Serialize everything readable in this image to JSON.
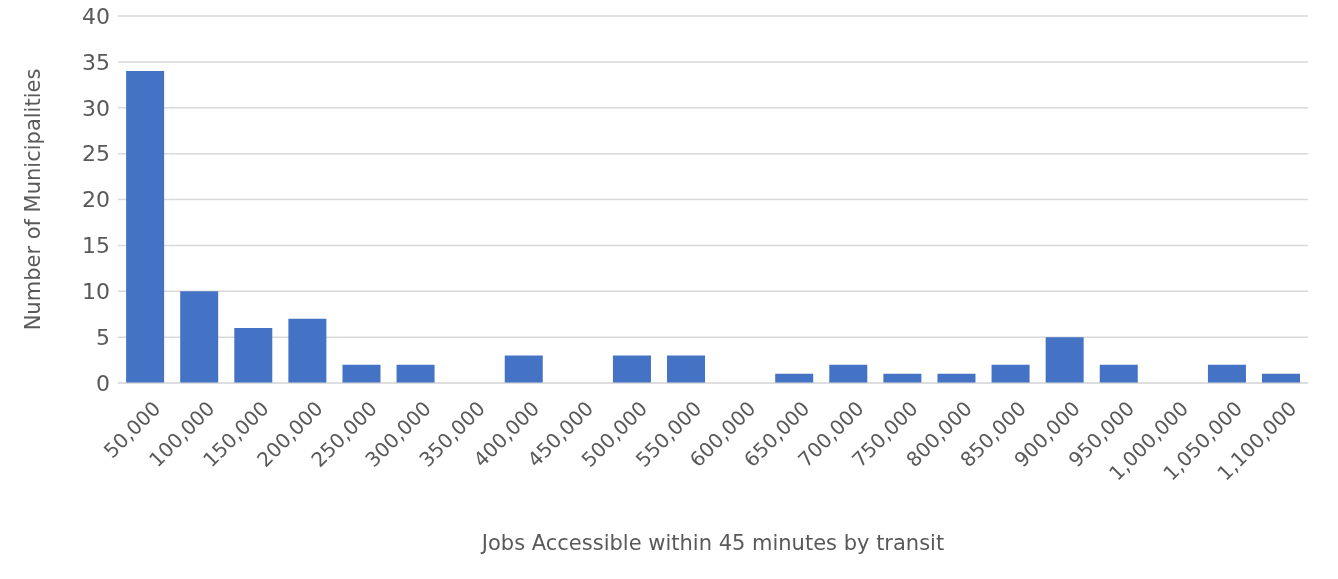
{
  "chart_data": {
    "type": "bar",
    "xlabel": "Jobs Accessible within 45 minutes by transit",
    "ylabel": "Number of Municipalities",
    "categories": [
      "50,000",
      "100,000",
      "150,000",
      "200,000",
      "250,000",
      "300,000",
      "350,000",
      "400,000",
      "450,000",
      "500,000",
      "550,000",
      "600,000",
      "650,000",
      "700,000",
      "750,000",
      "800,000",
      "850,000",
      "900,000",
      "950,000",
      "1,000,000",
      "1,050,000",
      "1,100,000"
    ],
    "values": [
      34,
      10,
      6,
      7,
      2,
      2,
      0,
      3,
      0,
      3,
      3,
      0,
      1,
      2,
      1,
      1,
      2,
      5,
      2,
      0,
      2,
      1
    ],
    "color": "#4472c4",
    "ylim": [
      0,
      40
    ],
    "yticks": [
      0,
      5,
      10,
      15,
      20,
      25,
      30,
      35,
      40
    ],
    "grid": "y"
  }
}
